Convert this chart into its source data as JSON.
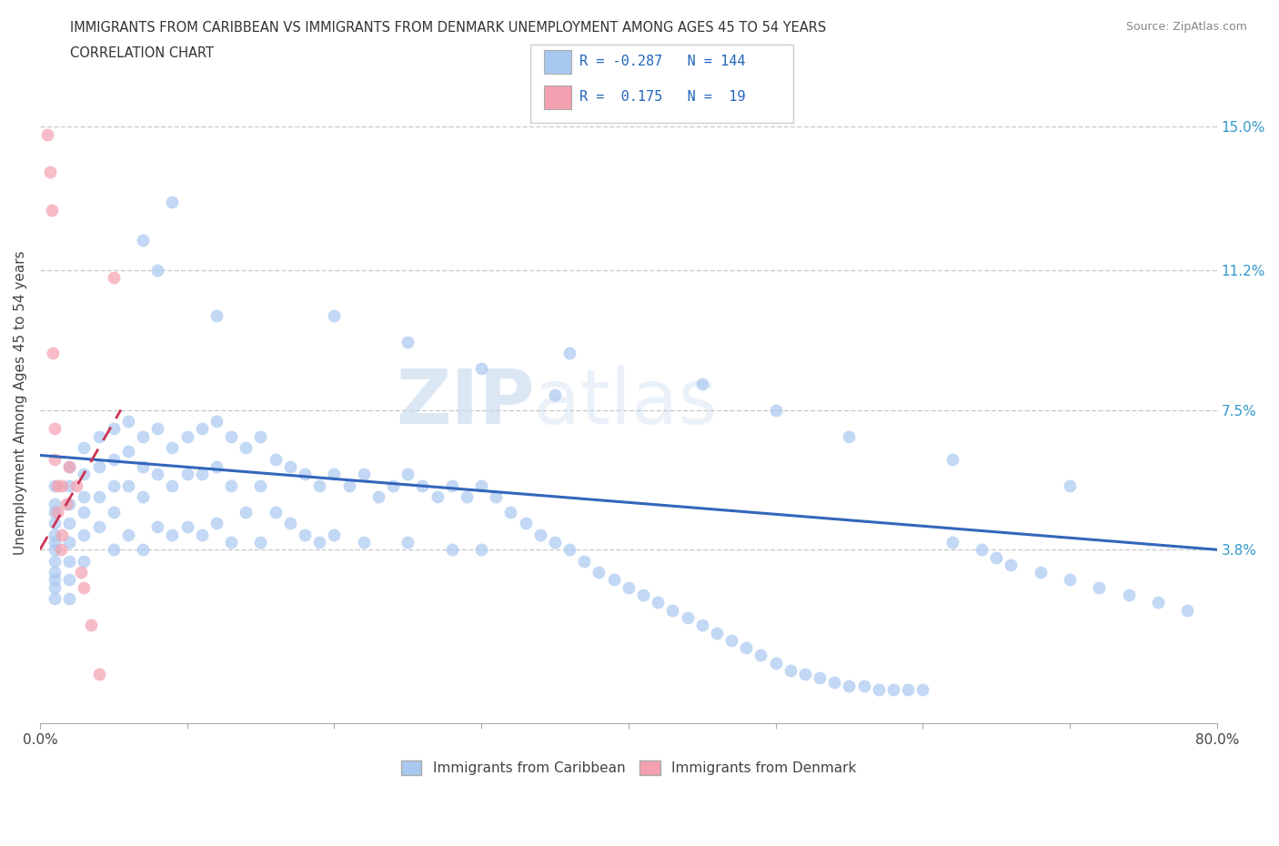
{
  "title_line1": "IMMIGRANTS FROM CARIBBEAN VS IMMIGRANTS FROM DENMARK UNEMPLOYMENT AMONG AGES 45 TO 54 YEARS",
  "title_line2": "CORRELATION CHART",
  "source_text": "Source: ZipAtlas.com",
  "ylabel": "Unemployment Among Ages 45 to 54 years",
  "xlim": [
    0.0,
    0.8
  ],
  "ylim": [
    -0.008,
    0.162
  ],
  "xticks": [
    0.0,
    0.1,
    0.2,
    0.3,
    0.4,
    0.5,
    0.6,
    0.7,
    0.8
  ],
  "xticklabels": [
    "0.0%",
    "",
    "",
    "",
    "",
    "",
    "",
    "",
    "80.0%"
  ],
  "yticks_right": [
    0.038,
    0.075,
    0.112,
    0.15
  ],
  "ytick_right_labels": [
    "3.8%",
    "7.5%",
    "11.2%",
    "15.0%"
  ],
  "watermark_zip": "ZIP",
  "watermark_atlas": "atlas",
  "blue_color": "#a8c8f0",
  "pink_color": "#f4a0b0",
  "blue_line_color": "#3366bb",
  "pink_line_color": "#cc3355",
  "legend_blue_r": "-0.287",
  "legend_blue_n": "144",
  "legend_pink_r": "0.175",
  "legend_pink_n": "19",
  "legend_label_blue": "Immigrants from Caribbean",
  "legend_label_pink": "Immigrants from Denmark",
  "blue_scatter_x": [
    0.01,
    0.01,
    0.01,
    0.01,
    0.01,
    0.01,
    0.01,
    0.01,
    0.01,
    0.01,
    0.01,
    0.01,
    0.02,
    0.02,
    0.02,
    0.02,
    0.02,
    0.02,
    0.02,
    0.02,
    0.03,
    0.03,
    0.03,
    0.03,
    0.03,
    0.03,
    0.04,
    0.04,
    0.04,
    0.04,
    0.05,
    0.05,
    0.05,
    0.05,
    0.05,
    0.06,
    0.06,
    0.06,
    0.06,
    0.07,
    0.07,
    0.07,
    0.07,
    0.08,
    0.08,
    0.08,
    0.09,
    0.09,
    0.09,
    0.1,
    0.1,
    0.1,
    0.11,
    0.11,
    0.11,
    0.12,
    0.12,
    0.12,
    0.13,
    0.13,
    0.13,
    0.14,
    0.14,
    0.15,
    0.15,
    0.15,
    0.16,
    0.16,
    0.17,
    0.17,
    0.18,
    0.18,
    0.19,
    0.19,
    0.2,
    0.2,
    0.21,
    0.22,
    0.22,
    0.23,
    0.24,
    0.25,
    0.25,
    0.26,
    0.27,
    0.28,
    0.28,
    0.29,
    0.3,
    0.3,
    0.31,
    0.32,
    0.33,
    0.34,
    0.35,
    0.36,
    0.37,
    0.38,
    0.39,
    0.4,
    0.41,
    0.42,
    0.43,
    0.44,
    0.45,
    0.46,
    0.47,
    0.48,
    0.49,
    0.5,
    0.51,
    0.52,
    0.53,
    0.54,
    0.55,
    0.56,
    0.57,
    0.58,
    0.59,
    0.6,
    0.62,
    0.64,
    0.65,
    0.66,
    0.68,
    0.7,
    0.72,
    0.74,
    0.76,
    0.78,
    0.36,
    0.45,
    0.5,
    0.55,
    0.62,
    0.7,
    0.2,
    0.25,
    0.3,
    0.35,
    0.07,
    0.08,
    0.09,
    0.12
  ],
  "blue_scatter_y": [
    0.055,
    0.05,
    0.048,
    0.045,
    0.042,
    0.04,
    0.038,
    0.035,
    0.032,
    0.03,
    0.028,
    0.025,
    0.06,
    0.055,
    0.05,
    0.045,
    0.04,
    0.035,
    0.03,
    0.025,
    0.065,
    0.058,
    0.052,
    0.048,
    0.042,
    0.035,
    0.068,
    0.06,
    0.052,
    0.044,
    0.07,
    0.062,
    0.055,
    0.048,
    0.038,
    0.072,
    0.064,
    0.055,
    0.042,
    0.068,
    0.06,
    0.052,
    0.038,
    0.07,
    0.058,
    0.044,
    0.065,
    0.055,
    0.042,
    0.068,
    0.058,
    0.044,
    0.07,
    0.058,
    0.042,
    0.072,
    0.06,
    0.045,
    0.068,
    0.055,
    0.04,
    0.065,
    0.048,
    0.068,
    0.055,
    0.04,
    0.062,
    0.048,
    0.06,
    0.045,
    0.058,
    0.042,
    0.055,
    0.04,
    0.058,
    0.042,
    0.055,
    0.058,
    0.04,
    0.052,
    0.055,
    0.058,
    0.04,
    0.055,
    0.052,
    0.055,
    0.038,
    0.052,
    0.055,
    0.038,
    0.052,
    0.048,
    0.045,
    0.042,
    0.04,
    0.038,
    0.035,
    0.032,
    0.03,
    0.028,
    0.026,
    0.024,
    0.022,
    0.02,
    0.018,
    0.016,
    0.014,
    0.012,
    0.01,
    0.008,
    0.006,
    0.005,
    0.004,
    0.003,
    0.002,
    0.002,
    0.001,
    0.001,
    0.001,
    0.001,
    0.04,
    0.038,
    0.036,
    0.034,
    0.032,
    0.03,
    0.028,
    0.026,
    0.024,
    0.022,
    0.09,
    0.082,
    0.075,
    0.068,
    0.062,
    0.055,
    0.1,
    0.093,
    0.086,
    0.079,
    0.12,
    0.112,
    0.13,
    0.1
  ],
  "pink_scatter_x": [
    0.005,
    0.007,
    0.008,
    0.009,
    0.01,
    0.01,
    0.012,
    0.012,
    0.014,
    0.015,
    0.015,
    0.018,
    0.02,
    0.025,
    0.028,
    0.03,
    0.035,
    0.04,
    0.05
  ],
  "pink_scatter_y": [
    0.148,
    0.138,
    0.128,
    0.09,
    0.07,
    0.062,
    0.055,
    0.048,
    0.038,
    0.055,
    0.042,
    0.05,
    0.06,
    0.055,
    0.032,
    0.028,
    0.018,
    0.005,
    0.11
  ],
  "blue_trend_x": [
    0.0,
    0.8
  ],
  "blue_trend_y": [
    0.063,
    0.038
  ],
  "pink_trend_x": [
    0.0,
    0.055
  ],
  "pink_trend_y": [
    0.038,
    0.075
  ],
  "grid_color": "#cccccc",
  "background_color": "#ffffff"
}
